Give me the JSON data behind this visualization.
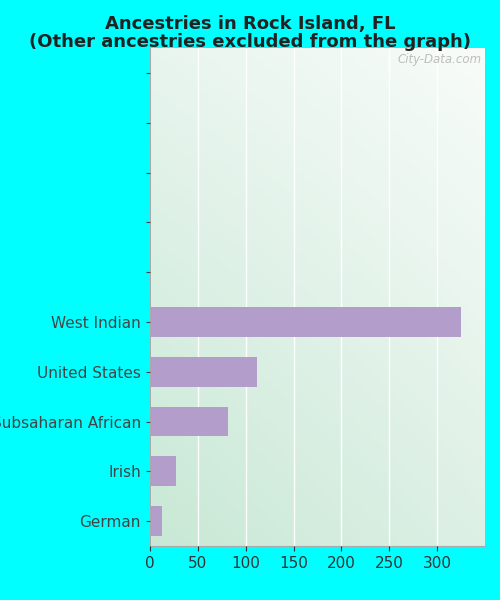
{
  "title_line1": "Ancestries in Rock Island, FL",
  "title_line2": "(Other ancestries excluded from the graph)",
  "categories": [
    "German",
    "Irish",
    "Subsaharan African",
    "United States",
    "West Indian"
  ],
  "values": [
    13,
    27,
    82,
    112,
    325
  ],
  "bar_color": "#b39dca",
  "background_color": "#00ffff",
  "plot_bg_color_topleft": "#d6ede0",
  "plot_bg_color_topright": "#f5faf7",
  "plot_bg_color_bottomleft": "#c8e8d5",
  "plot_bg_color_bottomright": "#e8f5ee",
  "watermark": "City-Data.com",
  "title_fontsize": 13,
  "tick_fontsize": 11,
  "xlim": [
    0,
    350
  ],
  "xticks": [
    0,
    50,
    100,
    150,
    200,
    250,
    300
  ],
  "ylim": [
    -0.5,
    9.5
  ],
  "bar_height": 0.6
}
